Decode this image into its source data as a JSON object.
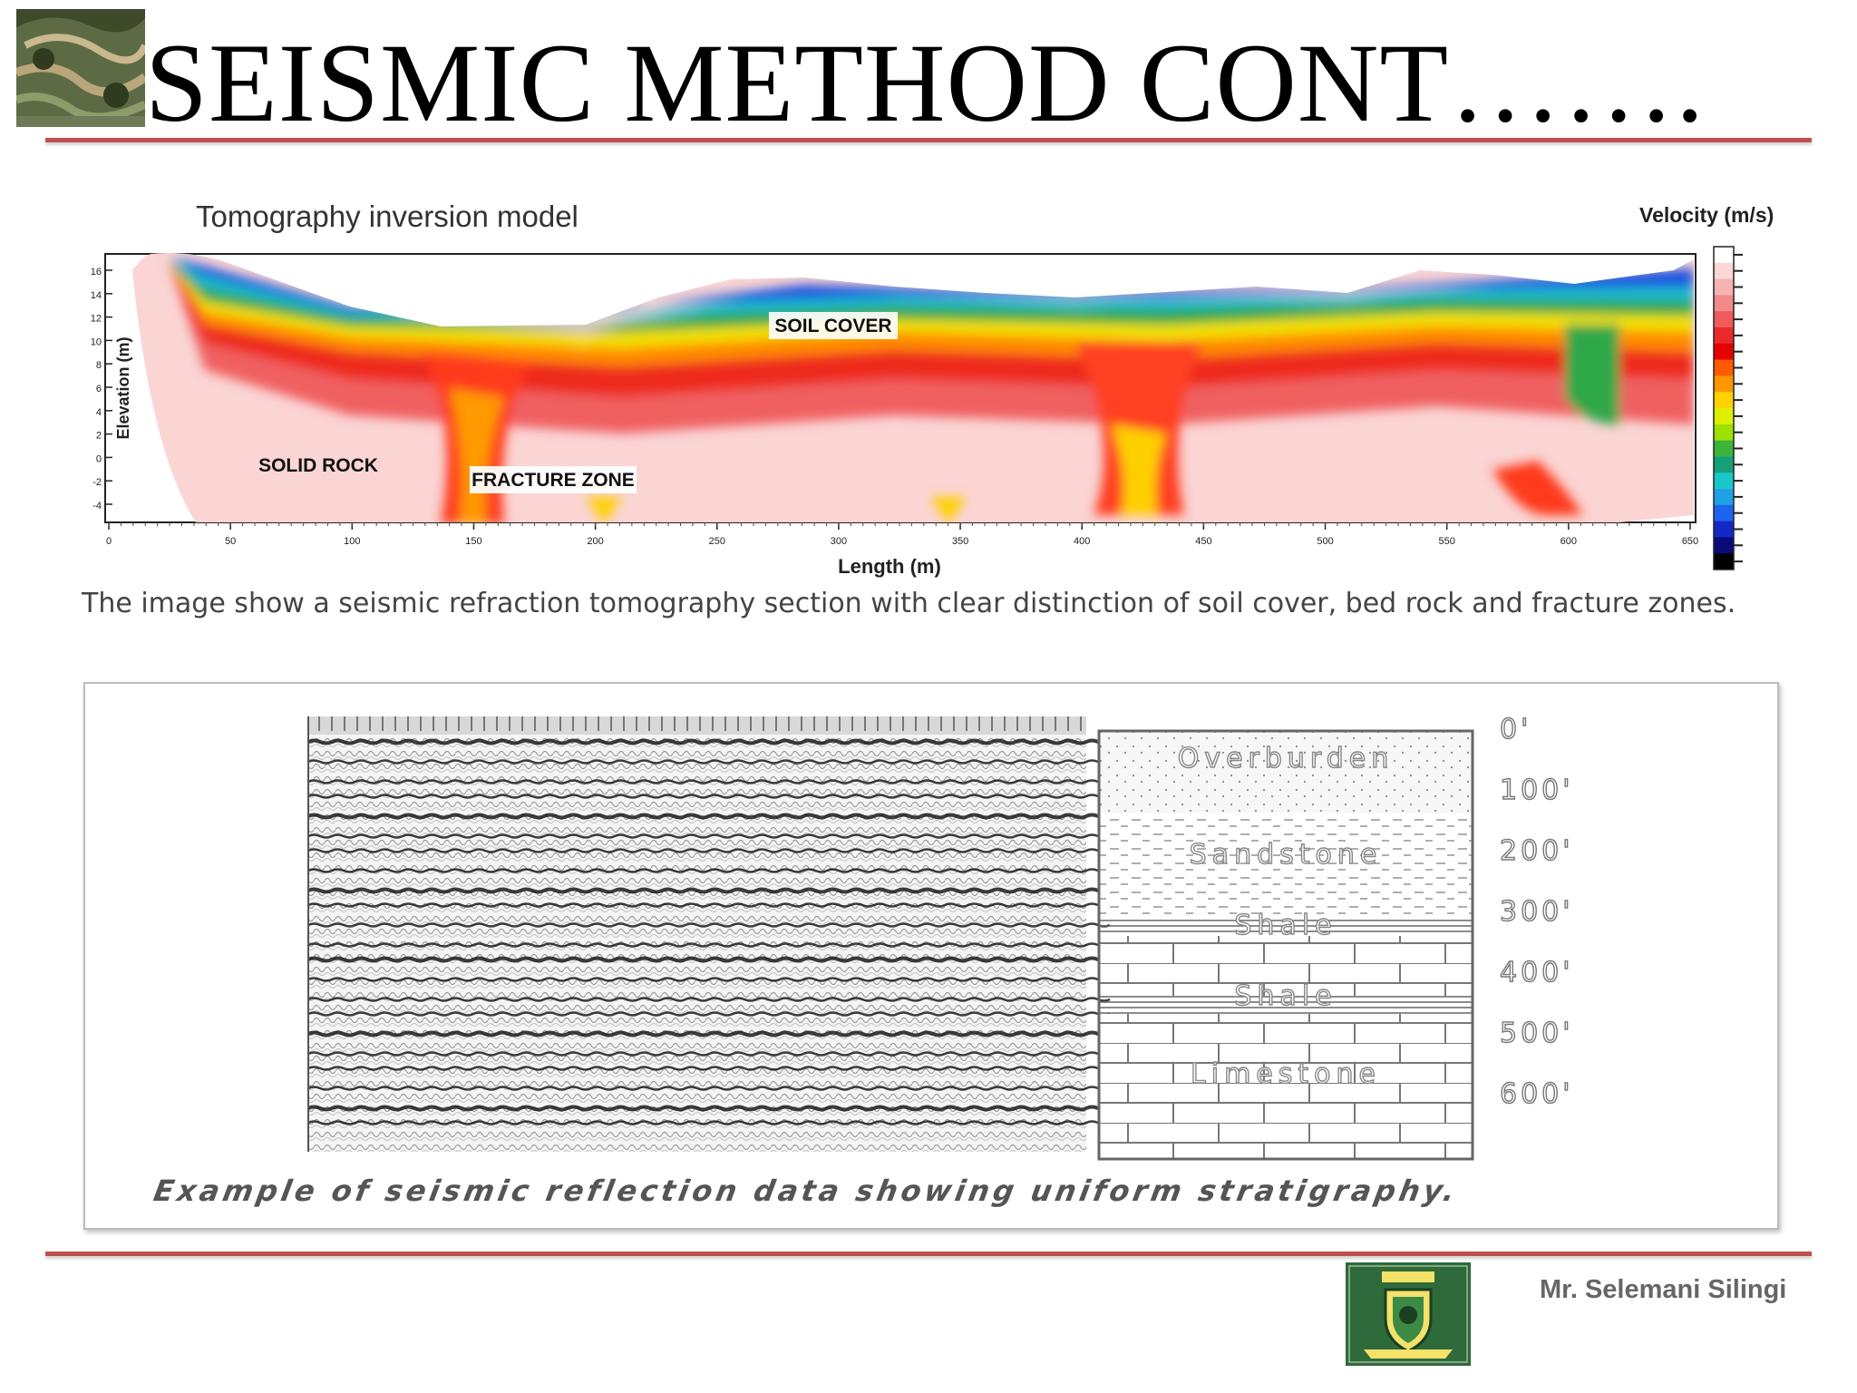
{
  "slide": {
    "title": "SEISMIC METHOD CONT…….",
    "author": "Mr. Selemani Silingi"
  },
  "tomography": {
    "title": "Tomography inversion model",
    "velocity_label": "Velocity (m/s)",
    "y_axis_label": "Elevation (m)",
    "x_axis_label": "Length (m)",
    "y_ticks": [
      "16",
      "14",
      "12",
      "10",
      "8",
      "6",
      "4",
      "2",
      "0",
      "-2",
      "-4"
    ],
    "x_ticks": [
      "0",
      "50",
      "100",
      "150",
      "200",
      "250",
      "300",
      "350",
      "400",
      "450",
      "500",
      "550",
      "600",
      "650"
    ],
    "labels": {
      "soil_cover": "SOIL COVER",
      "solid_rock": "SOLID ROCK",
      "fracture_zone": "FRACTURE ZONE"
    },
    "scale_colors": [
      "#ffffff",
      "#fbd7d7",
      "#f7b2b2",
      "#f38a8a",
      "#ef5a5a",
      "#ea2a2a",
      "#e60000",
      "#ff5a00",
      "#ff9600",
      "#ffd200",
      "#dcf000",
      "#9ee000",
      "#3cb43c",
      "#14a078",
      "#18c8c8",
      "#20a0e6",
      "#1e64f0",
      "#1428c8",
      "#0a0a78",
      "#000000"
    ],
    "caption": "The image show a seismic refraction tomography section with clear distinction of soil cover, bed rock and fracture zones."
  },
  "reflection": {
    "layers": [
      "Overburden",
      "Sandstone",
      "Shale",
      "Shale",
      "Limestone"
    ],
    "depths": [
      "0'",
      "100'",
      "200'",
      "300'",
      "400'",
      "500'",
      "600'"
    ],
    "caption": "Example of  seismic reflection data showing uniform stratigraphy."
  }
}
